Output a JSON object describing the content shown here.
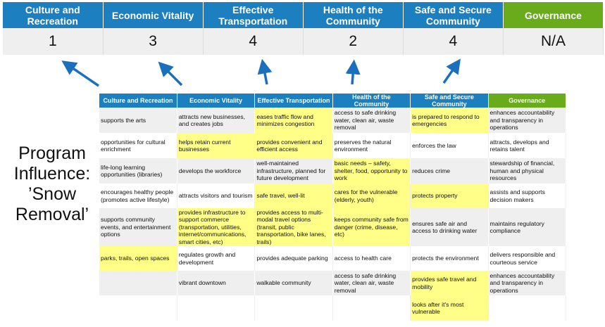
{
  "summary": {
    "headers": [
      "Culture and Recreation",
      "Economic Vitality",
      "Effective Transportation",
      "Health of the Community",
      "Safe and Secure Community",
      "Governance"
    ],
    "scores": [
      "1",
      "3",
      "4",
      "2",
      "4",
      "N/A"
    ]
  },
  "title": "Program Influence: ’Snow Removal’",
  "colors": {
    "header_blue": "#1c7fc0",
    "governance_green": "#6aab1c",
    "highlight_yellow": "#ffff88",
    "row_gray": "#efefef"
  },
  "table": {
    "headers": [
      "Culture and Recreation",
      "Economic Vitality",
      "Effective Transportation",
      "Health of the Community",
      "Safe and Secure Community",
      "Governance"
    ],
    "rows": [
      {
        "cells": [
          "supports the arts",
          "attracts new businesses, and creates jobs",
          "eases traffic flow and minimizes congestion",
          "access to safe drinking water, clean air, waste removal",
          "is prepared to respond to emergencies",
          "enhances accountability and transparency in operations"
        ],
        "highlighted": [
          false,
          false,
          true,
          false,
          true,
          false
        ]
      },
      {
        "cells": [
          "opportunities for cultural enrichment",
          "helps retain current businesses",
          "provides convenient and efficient access",
          "preserves the natural environment",
          "enforces the law",
          "attracts, develops and retains talent"
        ],
        "highlighted": [
          false,
          true,
          true,
          false,
          false,
          false
        ]
      },
      {
        "cells": [
          "life-long learning opportunities (libraries)",
          "develops the workforce",
          "well-maintained infrastructure, planned for future development",
          "basic needs – safety, shelter, food, opportunity to work",
          "reduces crime",
          "stewardship of financial, human and physical resources"
        ],
        "highlighted": [
          false,
          false,
          false,
          true,
          false,
          false
        ]
      },
      {
        "cells": [
          "encourages healthy people (promotes active lifestyle)",
          "attracts visitors and tourism",
          "safe travel, well-lit",
          "cares for the vulnerable (elderly, youth)",
          "protects property",
          "assists and supports decision makers"
        ],
        "highlighted": [
          false,
          false,
          true,
          true,
          true,
          false
        ]
      },
      {
        "cells": [
          "supports community events, and entertainment options",
          "provides infrastructure to support commerce (transportation, utilities, internet/communications, smart cities, etc)",
          "provides access to multi-modal travel options (transit, public transportation, bike lanes, trails)",
          "keeps community safe from danger (crime, disease, etc)",
          "ensures safe air and access to drinking water",
          "maintains regulatory compliance"
        ],
        "highlighted": [
          false,
          true,
          true,
          true,
          false,
          false
        ]
      },
      {
        "cells": [
          "parks, trails, open spaces",
          "regulates growth and development",
          "provides adequate parking",
          "access to health care",
          "protects the environment",
          "delivers responsible and courteous service"
        ],
        "highlighted": [
          true,
          false,
          false,
          false,
          false,
          false
        ]
      },
      {
        "cells": [
          "",
          "vibrant downtown",
          "walkable community",
          "access to safe drinking water, clean air, waste removal",
          "provides safe travel and mobility",
          "enhances accountability and transparency in operations"
        ],
        "highlighted": [
          false,
          false,
          false,
          false,
          true,
          false
        ]
      },
      {
        "cells": [
          "",
          "",
          "",
          "",
          "looks after it's most vulnerable",
          ""
        ],
        "highlighted": [
          false,
          false,
          false,
          false,
          true,
          false
        ]
      }
    ]
  }
}
